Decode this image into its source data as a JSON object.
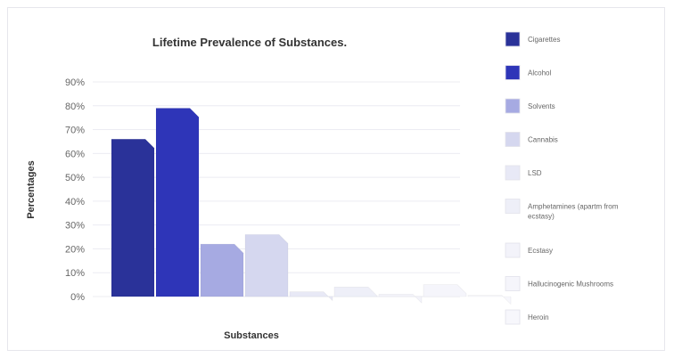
{
  "chart_data": {
    "type": "bar",
    "title": "Lifetime Prevalence of Substances.",
    "xlabel": "Substances",
    "ylabel": "Percentages",
    "ylim": [
      0,
      90
    ],
    "ytick_labels": [
      "0%",
      "10%",
      "20%",
      "30%",
      "40%",
      "50%",
      "60%",
      "70%",
      "80%",
      "90%"
    ],
    "legend_position": "right",
    "series": [
      {
        "name": "Cigarettes",
        "value": 66,
        "color": "#2a3299"
      },
      {
        "name": "Alcohol",
        "value": 79,
        "color": "#2e35b8"
      },
      {
        "name": "Solvents",
        "value": 22,
        "color": "#a6aae2"
      },
      {
        "name": "Cannabis",
        "value": 26,
        "color": "#d5d7ef"
      },
      {
        "name": "LSD",
        "value": 2,
        "color": "#e8e9f6"
      },
      {
        "name": "Amphetamines (apartm from ecstasy)",
        "value": 4,
        "color": "#eeeff8"
      },
      {
        "name": "Ecstasy",
        "value": 1,
        "color": "#f3f3fa"
      },
      {
        "name": "Hallucinogenic Mushrooms",
        "value": 5,
        "color": "#f5f5fb"
      },
      {
        "name": "Heroin",
        "value": 0.5,
        "color": "#f7f7fc"
      }
    ]
  }
}
